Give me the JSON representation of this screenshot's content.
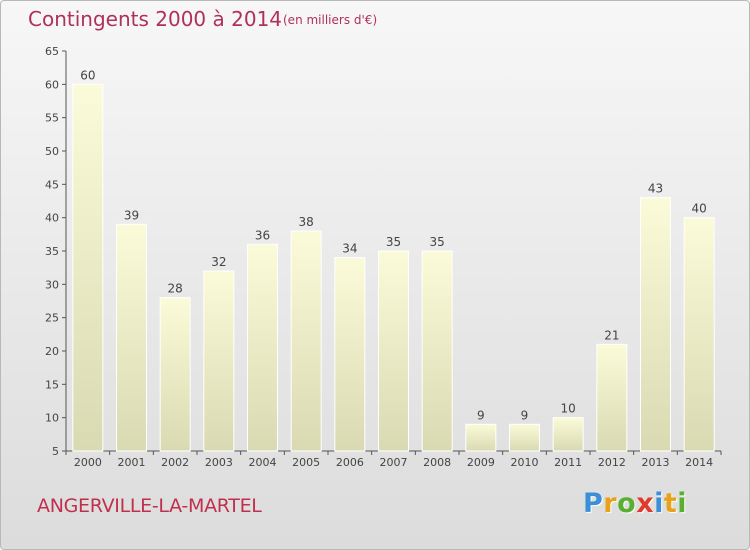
{
  "header": {
    "title": "Contingents 2000 à 2014",
    "subtitle": "(en milliers d'€)"
  },
  "footer": {
    "commune": "ANGERVILLE-LA-MARTEL",
    "logo_letters": [
      "P",
      "r",
      "o",
      "x",
      "i",
      "t",
      "i"
    ],
    "logo_colors": [
      "#3a8fd6",
      "#e8a21a",
      "#59b030",
      "#e03a2a",
      "#3a8fd6",
      "#e8a21a",
      "#59b030"
    ]
  },
  "colors": {
    "bar_top": "#fbfbd9",
    "bar_bottom": "#d9d9b2",
    "axis": "#555555",
    "title": "#b0305c"
  },
  "chart_data": {
    "type": "bar",
    "title": "Contingents 2000 à 2014",
    "subtitle": "(en milliers d'€)",
    "categories": [
      "2000",
      "2001",
      "2002",
      "2003",
      "2004",
      "2005",
      "2006",
      "2007",
      "2008",
      "2009",
      "2010",
      "2011",
      "2012",
      "2013",
      "2014"
    ],
    "values": [
      60,
      39,
      28,
      32,
      36,
      38,
      34,
      35,
      35,
      9,
      9,
      10,
      21,
      43,
      40
    ],
    "xlabel": "",
    "ylabel": "",
    "ylim": [
      5,
      65
    ],
    "yticks": [
      5,
      10,
      15,
      20,
      25,
      30,
      35,
      40,
      45,
      50,
      55,
      60,
      65
    ],
    "grid": false,
    "legend": "none"
  }
}
